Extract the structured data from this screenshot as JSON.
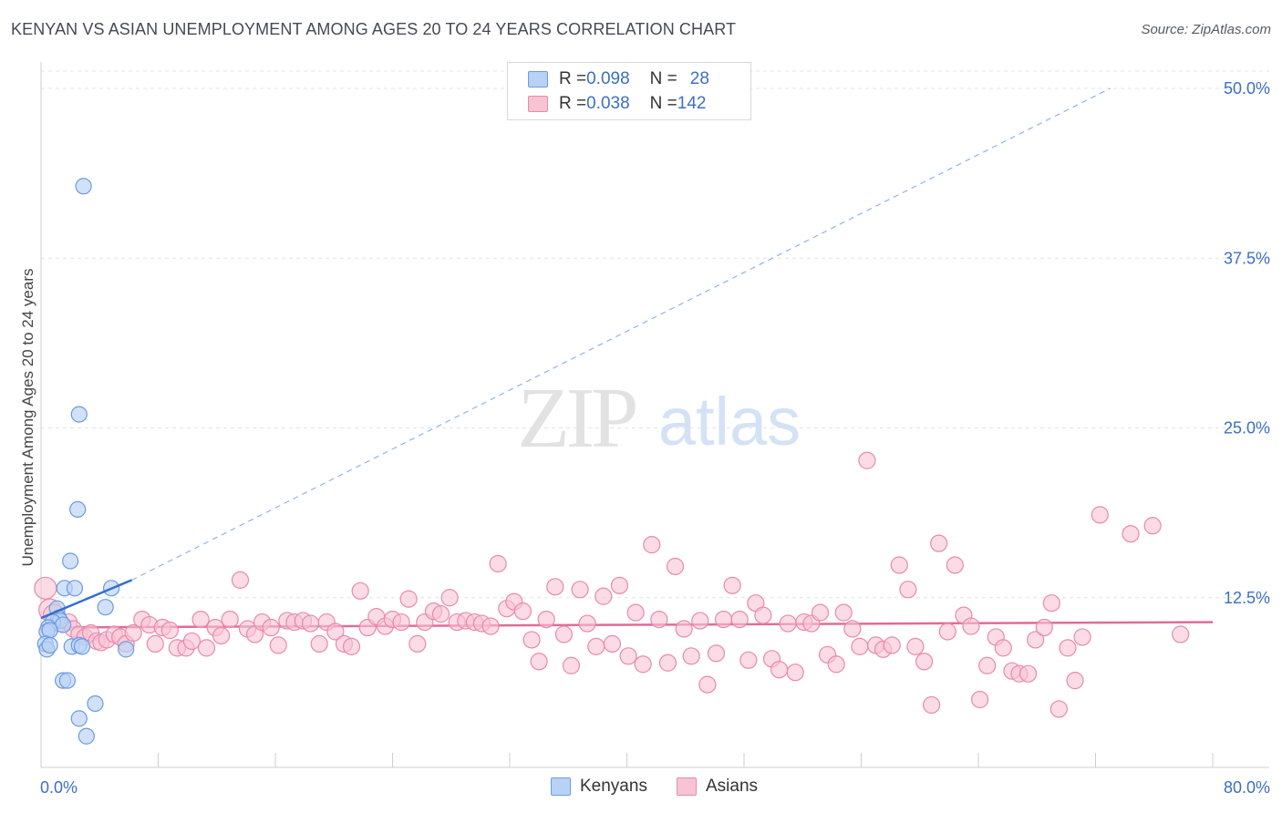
{
  "title": "KENYAN VS ASIAN UNEMPLOYMENT AMONG AGES 20 TO 24 YEARS CORRELATION CHART",
  "source": "Source: ZipAtlas.com",
  "watermark": {
    "zip": "ZIP",
    "atlas": "atlas"
  },
  "legend": {
    "kenyans": {
      "r_label": "R = ",
      "r_value": "0.098",
      "n_label": "N = ",
      "n_value": "28"
    },
    "asians": {
      "r_label": "R = ",
      "r_value": "0.038",
      "n_label": "N = ",
      "n_value": "142"
    }
  },
  "colors": {
    "kenyan_fill": "#b8d2f5",
    "kenyan_stroke": "#6d9be0",
    "kenyan_line": "#2f6fd0",
    "asian_fill": "#f8c3d3",
    "asian_stroke": "#e88aaa",
    "asian_line": "#e06c98",
    "tick_text": "#3b6fc4",
    "grid": "#e4e4e4"
  },
  "chart_data": {
    "type": "scatter",
    "title": "KENYAN VS ASIAN UNEMPLOYMENT AMONG AGES 20 TO 24 YEARS CORRELATION CHART",
    "xlabel": "",
    "ylabel": "Unemployment Among Ages 20 to 24 years",
    "xlim": [
      0,
      80
    ],
    "ylim": [
      0,
      50
    ],
    "x_tick_labels": [
      "0.0%",
      "80.0%"
    ],
    "y_ticks": [
      12.5,
      25.0,
      37.5,
      50.0
    ],
    "y_tick_labels": [
      "12.5%",
      "25.0%",
      "37.5%",
      "50.0%"
    ],
    "legend_position": "top-center",
    "series": [
      {
        "name": "Kenyans",
        "points": [
          [
            2.9,
            42.8
          ],
          [
            2.6,
            26.0
          ],
          [
            2.5,
            19.0
          ],
          [
            2.0,
            15.2
          ],
          [
            4.8,
            13.2
          ],
          [
            1.6,
            13.2
          ],
          [
            2.3,
            13.2
          ],
          [
            4.4,
            11.8
          ],
          [
            1.1,
            11.7
          ],
          [
            1.2,
            11.0
          ],
          [
            1.3,
            10.8
          ],
          [
            0.8,
            10.7
          ],
          [
            1.5,
            10.5
          ],
          [
            0.5,
            10.3
          ],
          [
            0.4,
            10.0
          ],
          [
            0.6,
            10.1
          ],
          [
            0.3,
            9.1
          ],
          [
            0.4,
            8.7
          ],
          [
            0.6,
            9.0
          ],
          [
            2.1,
            8.9
          ],
          [
            2.6,
            9.0
          ],
          [
            2.8,
            8.9
          ],
          [
            5.8,
            8.7
          ],
          [
            1.5,
            6.4
          ],
          [
            1.8,
            6.4
          ],
          [
            3.7,
            4.7
          ],
          [
            2.6,
            3.6
          ],
          [
            3.1,
            2.3
          ]
        ],
        "trend": {
          "x0": 0.0,
          "y0": 11.0,
          "x1": 6.2,
          "y1": 13.8,
          "dashed_extension_to": [
            73.0,
            50.0
          ]
        }
      },
      {
        "name": "Asians",
        "points": [
          [
            0.3,
            13.2
          ],
          [
            0.6,
            11.6
          ],
          [
            0.9,
            11.2
          ],
          [
            1.3,
            10.6
          ],
          [
            1.9,
            10.7
          ],
          [
            2.2,
            10.2
          ],
          [
            2.6,
            9.8
          ],
          [
            3.0,
            9.6
          ],
          [
            3.4,
            9.9
          ],
          [
            3.8,
            9.3
          ],
          [
            4.1,
            9.2
          ],
          [
            4.5,
            9.4
          ],
          [
            5.0,
            9.8
          ],
          [
            5.4,
            9.6
          ],
          [
            5.8,
            9.1
          ],
          [
            6.3,
            9.9
          ],
          [
            6.9,
            10.9
          ],
          [
            7.4,
            10.5
          ],
          [
            7.8,
            9.1
          ],
          [
            8.3,
            10.3
          ],
          [
            8.8,
            10.1
          ],
          [
            9.3,
            8.8
          ],
          [
            9.9,
            8.8
          ],
          [
            10.3,
            9.3
          ],
          [
            10.9,
            10.9
          ],
          [
            11.3,
            8.8
          ],
          [
            11.9,
            10.3
          ],
          [
            12.3,
            9.7
          ],
          [
            12.9,
            10.9
          ],
          [
            13.6,
            13.8
          ],
          [
            14.1,
            10.2
          ],
          [
            14.6,
            9.8
          ],
          [
            15.1,
            10.7
          ],
          [
            15.7,
            10.3
          ],
          [
            16.2,
            9.0
          ],
          [
            16.8,
            10.8
          ],
          [
            17.3,
            10.7
          ],
          [
            17.9,
            10.8
          ],
          [
            18.4,
            10.6
          ],
          [
            19.0,
            9.1
          ],
          [
            19.5,
            10.7
          ],
          [
            20.1,
            10.0
          ],
          [
            20.7,
            9.1
          ],
          [
            21.2,
            8.9
          ],
          [
            21.8,
            13.0
          ],
          [
            22.3,
            10.3
          ],
          [
            22.9,
            11.1
          ],
          [
            23.5,
            10.4
          ],
          [
            24.0,
            10.9
          ],
          [
            24.6,
            10.7
          ],
          [
            25.1,
            12.4
          ],
          [
            25.7,
            9.1
          ],
          [
            26.2,
            10.7
          ],
          [
            26.8,
            11.5
          ],
          [
            27.3,
            11.3
          ],
          [
            27.9,
            12.5
          ],
          [
            28.4,
            10.7
          ],
          [
            29.0,
            10.8
          ],
          [
            29.6,
            10.7
          ],
          [
            30.1,
            10.6
          ],
          [
            30.7,
            10.4
          ],
          [
            31.2,
            15.0
          ],
          [
            31.8,
            11.7
          ],
          [
            32.3,
            12.2
          ],
          [
            32.9,
            11.5
          ],
          [
            33.5,
            9.4
          ],
          [
            34.0,
            7.8
          ],
          [
            34.5,
            10.9
          ],
          [
            35.1,
            13.3
          ],
          [
            35.7,
            9.8
          ],
          [
            36.2,
            7.5
          ],
          [
            36.8,
            13.1
          ],
          [
            37.3,
            10.6
          ],
          [
            37.9,
            8.9
          ],
          [
            38.4,
            12.6
          ],
          [
            39.0,
            9.1
          ],
          [
            39.5,
            13.4
          ],
          [
            40.1,
            8.2
          ],
          [
            40.6,
            11.4
          ],
          [
            41.1,
            7.6
          ],
          [
            41.7,
            16.4
          ],
          [
            42.2,
            10.9
          ],
          [
            42.8,
            7.7
          ],
          [
            43.3,
            14.8
          ],
          [
            43.9,
            10.2
          ],
          [
            44.4,
            8.2
          ],
          [
            45.0,
            10.8
          ],
          [
            45.5,
            6.1
          ],
          [
            46.1,
            8.4
          ],
          [
            46.6,
            10.9
          ],
          [
            47.2,
            13.4
          ],
          [
            47.7,
            10.9
          ],
          [
            48.3,
            7.9
          ],
          [
            48.8,
            12.1
          ],
          [
            49.3,
            11.2
          ],
          [
            49.9,
            8.0
          ],
          [
            50.4,
            7.2
          ],
          [
            51.0,
            10.6
          ],
          [
            51.5,
            7.0
          ],
          [
            52.1,
            10.7
          ],
          [
            52.6,
            10.6
          ],
          [
            53.2,
            11.4
          ],
          [
            53.7,
            8.3
          ],
          [
            54.3,
            7.6
          ],
          [
            54.8,
            11.4
          ],
          [
            55.4,
            10.2
          ],
          [
            55.9,
            8.9
          ],
          [
            56.4,
            22.6
          ],
          [
            57.0,
            9.0
          ],
          [
            57.5,
            8.7
          ],
          [
            58.1,
            9.0
          ],
          [
            58.6,
            14.9
          ],
          [
            59.2,
            13.1
          ],
          [
            59.7,
            8.9
          ],
          [
            60.3,
            7.8
          ],
          [
            60.8,
            4.6
          ],
          [
            61.3,
            16.5
          ],
          [
            61.9,
            10.0
          ],
          [
            62.4,
            14.9
          ],
          [
            63.0,
            11.2
          ],
          [
            63.5,
            10.4
          ],
          [
            64.1,
            5.0
          ],
          [
            64.6,
            7.5
          ],
          [
            65.2,
            9.6
          ],
          [
            65.7,
            8.8
          ],
          [
            66.3,
            7.1
          ],
          [
            66.8,
            6.9
          ],
          [
            67.4,
            6.9
          ],
          [
            67.9,
            9.4
          ],
          [
            68.5,
            10.3
          ],
          [
            69.0,
            12.1
          ],
          [
            69.5,
            4.3
          ],
          [
            70.1,
            8.8
          ],
          [
            70.6,
            6.4
          ],
          [
            71.1,
            9.6
          ],
          [
            72.3,
            18.6
          ],
          [
            74.4,
            17.2
          ],
          [
            75.9,
            17.8
          ],
          [
            77.8,
            9.8
          ]
        ],
        "trend": {
          "x0": 0.0,
          "y0": 10.3,
          "x1": 80.0,
          "y1": 10.7
        }
      }
    ]
  },
  "bottom_legend": {
    "kenyans": "Kenyans",
    "asians": "Asians"
  }
}
